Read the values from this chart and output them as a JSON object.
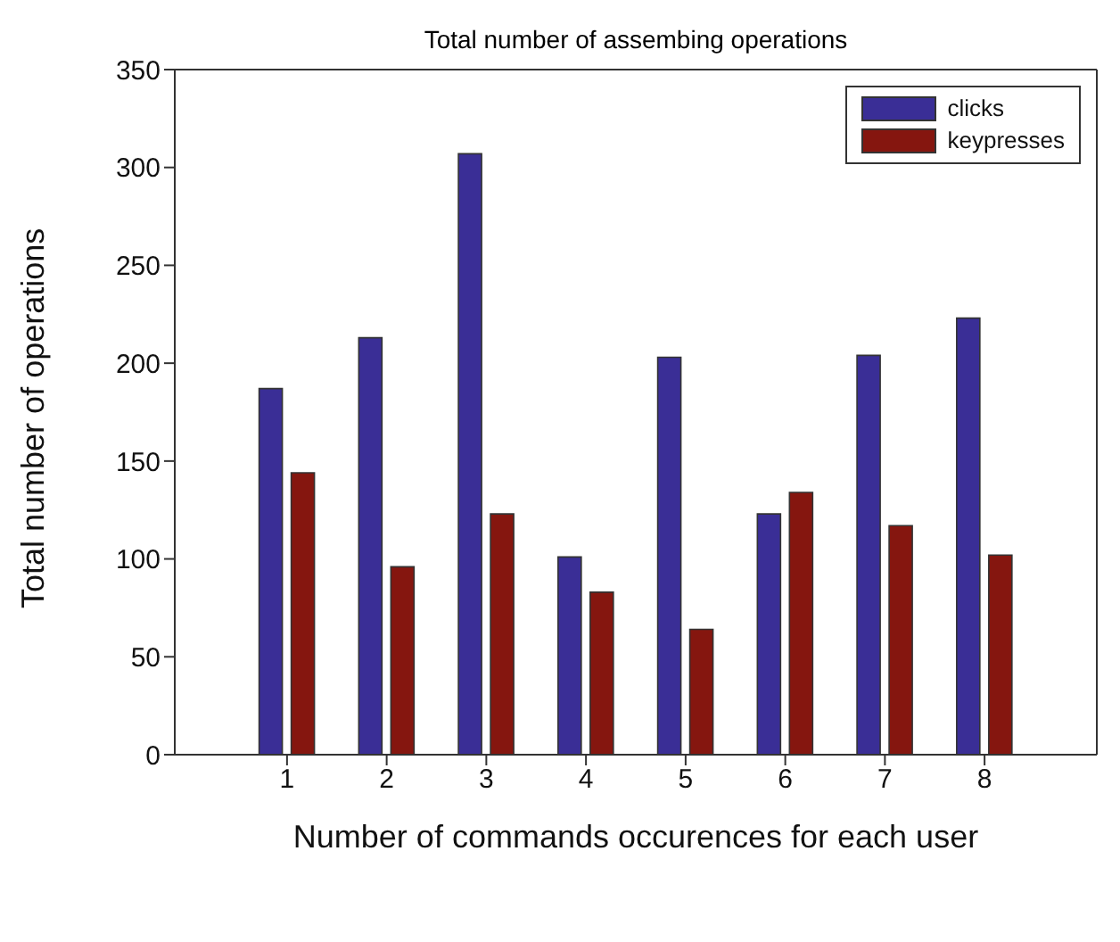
{
  "chart_data": {
    "type": "bar",
    "title": "Total number of assembing operations",
    "xlabel": "Number of commands occurences for each user",
    "ylabel": "Total number of operations",
    "categories": [
      "1",
      "2",
      "3",
      "4",
      "5",
      "6",
      "7",
      "8"
    ],
    "series": [
      {
        "name": "clicks",
        "color": "#3a2e96",
        "values": [
          187,
          213,
          307,
          101,
          203,
          123,
          204,
          223
        ]
      },
      {
        "name": "keypresses",
        "color": "#85160f",
        "values": [
          144,
          96,
          123,
          83,
          64,
          134,
          117,
          102
        ]
      }
    ],
    "ylim": [
      0,
      350
    ],
    "yticks": [
      0,
      50,
      100,
      150,
      200,
      250,
      300,
      350
    ],
    "grid": false,
    "legend": "top right"
  }
}
